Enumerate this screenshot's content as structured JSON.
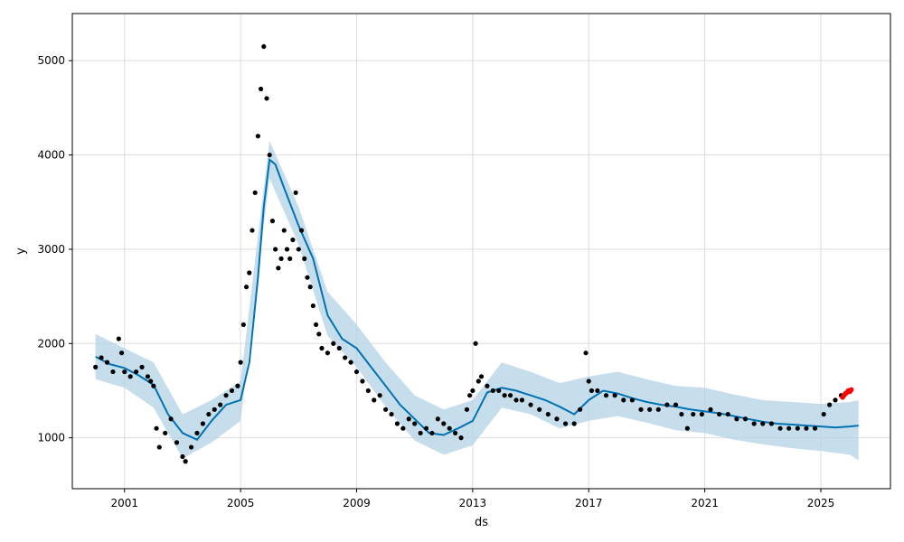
{
  "chart_data": {
    "type": "scatter",
    "title": "",
    "xlabel": "ds",
    "ylabel": "y",
    "xlim": [
      1999.2,
      2027.4
    ],
    "ylim": [
      460,
      5500
    ],
    "x_ticks": [
      2001,
      2005,
      2009,
      2013,
      2017,
      2021,
      2025
    ],
    "y_ticks": [
      1000,
      2000,
      3000,
      4000,
      5000
    ],
    "grid": true,
    "legend": "none",
    "colors": {
      "observed": "#000000",
      "forecast_line": "#0072B2",
      "interval_band": "#b3d1e6",
      "recent": "#ff0000"
    },
    "series": [
      {
        "role": "observed",
        "x": [
          2000.0,
          2000.2,
          2000.4,
          2000.6,
          2000.8,
          2000.9,
          2001.0,
          2001.2,
          2001.4,
          2001.6,
          2001.8,
          2001.9,
          2002.0,
          2002.1,
          2002.2,
          2002.4,
          2002.6,
          2002.8,
          2003.0,
          2003.1,
          2003.3,
          2003.5,
          2003.7,
          2003.9,
          2004.1,
          2004.3,
          2004.5,
          2004.7,
          2004.9,
          2005.0,
          2005.1,
          2005.2,
          2005.3,
          2005.4,
          2005.5,
          2005.6,
          2005.7,
          2005.8,
          2005.9,
          2006.0,
          2006.1,
          2006.2,
          2006.3,
          2006.4,
          2006.5,
          2006.6,
          2006.7,
          2006.8,
          2006.9,
          2007.0,
          2007.1,
          2007.2,
          2007.3,
          2007.4,
          2007.5,
          2007.6,
          2007.7,
          2007.8,
          2008.0,
          2008.2,
          2008.4,
          2008.6,
          2008.8,
          2009.0,
          2009.2,
          2009.4,
          2009.6,
          2009.8,
          2010.0,
          2010.2,
          2010.4,
          2010.6,
          2010.8,
          2011.0,
          2011.2,
          2011.4,
          2011.6,
          2011.8,
          2012.0,
          2012.2,
          2012.4,
          2012.6,
          2012.8,
          2012.9,
          2013.0,
          2013.1,
          2013.2,
          2013.3,
          2013.5,
          2013.7,
          2013.9,
          2014.1,
          2014.3,
          2014.5,
          2014.7,
          2015.0,
          2015.3,
          2015.6,
          2015.9,
          2016.2,
          2016.5,
          2016.7,
          2016.9,
          2017.0,
          2017.1,
          2017.3,
          2017.6,
          2017.9,
          2018.2,
          2018.5,
          2018.8,
          2019.1,
          2019.4,
          2019.7,
          2020.0,
          2020.2,
          2020.4,
          2020.6,
          2020.9,
          2021.2,
          2021.5,
          2021.8,
          2022.1,
          2022.4,
          2022.7,
          2023.0,
          2023.3,
          2023.6,
          2023.9,
          2024.2,
          2024.5,
          2024.8,
          2025.1,
          2025.3,
          2025.5,
          2025.7
        ],
        "values": [
          1750,
          1850,
          1800,
          1700,
          2050,
          1900,
          1700,
          1650,
          1700,
          1750,
          1650,
          1600,
          1550,
          1100,
          900,
          1050,
          1200,
          950,
          800,
          750,
          900,
          1050,
          1150,
          1250,
          1300,
          1350,
          1450,
          1500,
          1550,
          1800,
          2200,
          2600,
          2750,
          3200,
          3600,
          4200,
          4700,
          5150,
          4600,
          4000,
          3300,
          3000,
          2800,
          2900,
          3200,
          3000,
          2900,
          3100,
          3600,
          3000,
          3200,
          2900,
          2700,
          2600,
          2400,
          2200,
          2100,
          1950,
          1900,
          2000,
          1950,
          1850,
          1800,
          1700,
          1600,
          1500,
          1400,
          1450,
          1300,
          1250,
          1150,
          1100,
          1200,
          1150,
          1050,
          1100,
          1050,
          1200,
          1150,
          1100,
          1050,
          1000,
          1300,
          1450,
          1500,
          2000,
          1600,
          1650,
          1550,
          1500,
          1500,
          1450,
          1450,
          1400,
          1400,
          1350,
          1300,
          1250,
          1200,
          1150,
          1150,
          1300,
          1900,
          1600,
          1500,
          1500,
          1450,
          1450,
          1400,
          1400,
          1300,
          1300,
          1300,
          1350,
          1350,
          1250,
          1100,
          1250,
          1250,
          1300,
          1250,
          1250,
          1200,
          1200,
          1150,
          1150,
          1150,
          1100,
          1100,
          1100,
          1100,
          1100,
          1250,
          1350,
          1400,
          1450
        ]
      },
      {
        "role": "recent",
        "x": [
          2025.75,
          2025.8,
          2025.85,
          2025.9,
          2025.95,
          2026.0,
          2026.05
        ],
        "values": [
          1430,
          1450,
          1470,
          1480,
          1500,
          1490,
          1510
        ]
      },
      {
        "role": "forecast_line",
        "x": [
          2000.0,
          2000.5,
          2001.0,
          2001.5,
          2002.0,
          2002.5,
          2003.0,
          2003.5,
          2004.0,
          2004.5,
          2005.0,
          2005.3,
          2005.6,
          2005.8,
          2006.0,
          2006.2,
          2006.5,
          2007.0,
          2007.5,
          2008.0,
          2008.5,
          2009.0,
          2009.5,
          2010.0,
          2010.5,
          2011.0,
          2011.5,
          2012.0,
          2012.5,
          2013.0,
          2013.5,
          2014.0,
          2014.5,
          2015.0,
          2015.5,
          2016.0,
          2016.5,
          2017.0,
          2017.5,
          2018.0,
          2018.5,
          2019.0,
          2019.5,
          2020.0,
          2020.5,
          2021.0,
          2021.5,
          2022.0,
          2022.5,
          2023.0,
          2023.5,
          2024.0,
          2024.5,
          2025.0,
          2025.5,
          2026.0,
          2026.3
        ],
        "values": [
          1860,
          1780,
          1740,
          1660,
          1560,
          1250,
          1050,
          980,
          1180,
          1350,
          1400,
          1800,
          2700,
          3450,
          3950,
          3900,
          3650,
          3250,
          2900,
          2300,
          2050,
          1950,
          1750,
          1550,
          1350,
          1200,
          1050,
          1030,
          1100,
          1180,
          1480,
          1530,
          1500,
          1450,
          1400,
          1330,
          1250,
          1400,
          1500,
          1470,
          1420,
          1380,
          1350,
          1330,
          1300,
          1280,
          1260,
          1230,
          1200,
          1170,
          1150,
          1140,
          1130,
          1120,
          1110,
          1120,
          1130
        ]
      },
      {
        "role": "interval_upper",
        "x": [
          2000.0,
          2001.0,
          2002.0,
          2003.0,
          2004.0,
          2005.0,
          2005.8,
          2006.0,
          2007.0,
          2008.0,
          2009.0,
          2010.0,
          2011.0,
          2012.0,
          2013.0,
          2014.0,
          2015.0,
          2016.0,
          2017.0,
          2018.0,
          2019.0,
          2020.0,
          2021.0,
          2022.0,
          2023.0,
          2024.0,
          2025.0,
          2026.0,
          2026.3
        ],
        "values": [
          2100,
          1950,
          1800,
          1250,
          1400,
          1600,
          3650,
          4150,
          3450,
          2550,
          2200,
          1800,
          1450,
          1300,
          1400,
          1800,
          1700,
          1580,
          1650,
          1700,
          1620,
          1550,
          1530,
          1460,
          1400,
          1380,
          1360,
          1380,
          1400
        ]
      },
      {
        "role": "interval_lower",
        "x": [
          2000.0,
          2001.0,
          2002.0,
          2003.0,
          2004.0,
          2005.0,
          2005.8,
          2006.0,
          2007.0,
          2008.0,
          2009.0,
          2010.0,
          2011.0,
          2012.0,
          2013.0,
          2014.0,
          2015.0,
          2016.0,
          2017.0,
          2018.0,
          2019.0,
          2020.0,
          2021.0,
          2022.0,
          2023.0,
          2024.0,
          2025.0,
          2026.0,
          2026.3
        ],
        "values": [
          1620,
          1530,
          1320,
          780,
          950,
          1180,
          3250,
          3750,
          3050,
          2080,
          1750,
          1330,
          970,
          820,
          920,
          1320,
          1250,
          1100,
          1180,
          1230,
          1160,
          1080,
          1050,
          980,
          930,
          890,
          860,
          820,
          760
        ]
      }
    ]
  }
}
